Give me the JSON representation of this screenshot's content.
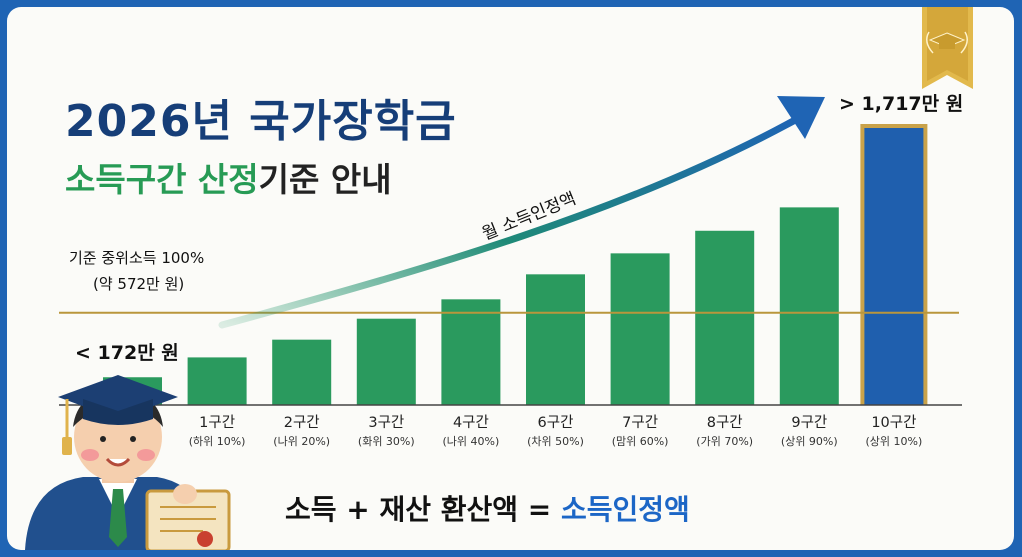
{
  "title": "2026년 국가장학금",
  "subtitle_part1": "소득구간 산정",
  "subtitle_part2": "기준 안내",
  "reference_line_label": "기준 중위소득 100%",
  "reference_line_sub": "(약 572만 원)",
  "arrow_label": "월 소득인정액",
  "min_label": "< 172만 원",
  "max_label": "> 1,717만 원",
  "formula_part1": "소득 + 재산 환산액 =",
  "formula_part2": "소득인정액",
  "colors": {
    "bar": "#2a9a5e",
    "highlight_bar": "#1f5fae",
    "gold": "#c9a24a",
    "title": "#163e78",
    "arrow": "#1f64b4"
  },
  "chart_data": {
    "type": "bar",
    "categories": [
      "",
      "1구간",
      "2구간",
      "3구간",
      "4구간",
      "6구간",
      "7구간",
      "8구간",
      "9구간",
      "10구간"
    ],
    "subcategories": [
      "",
      "(하위 10%)",
      "(나위 20%)",
      "(화위 30%)",
      "(나위 40%)",
      "(차위 50%)",
      "(맘위 60%)",
      "(가위 70%)",
      "(상위 90%)",
      "(상위 10%)"
    ],
    "values": [
      172,
      295,
      405,
      535,
      655,
      810,
      940,
      1080,
      1225,
      1717
    ],
    "highlight_index": 9,
    "reference_line": 572,
    "ylim": [
      0,
      1717
    ],
    "grid": false,
    "xlabel": "",
    "ylabel": ""
  }
}
